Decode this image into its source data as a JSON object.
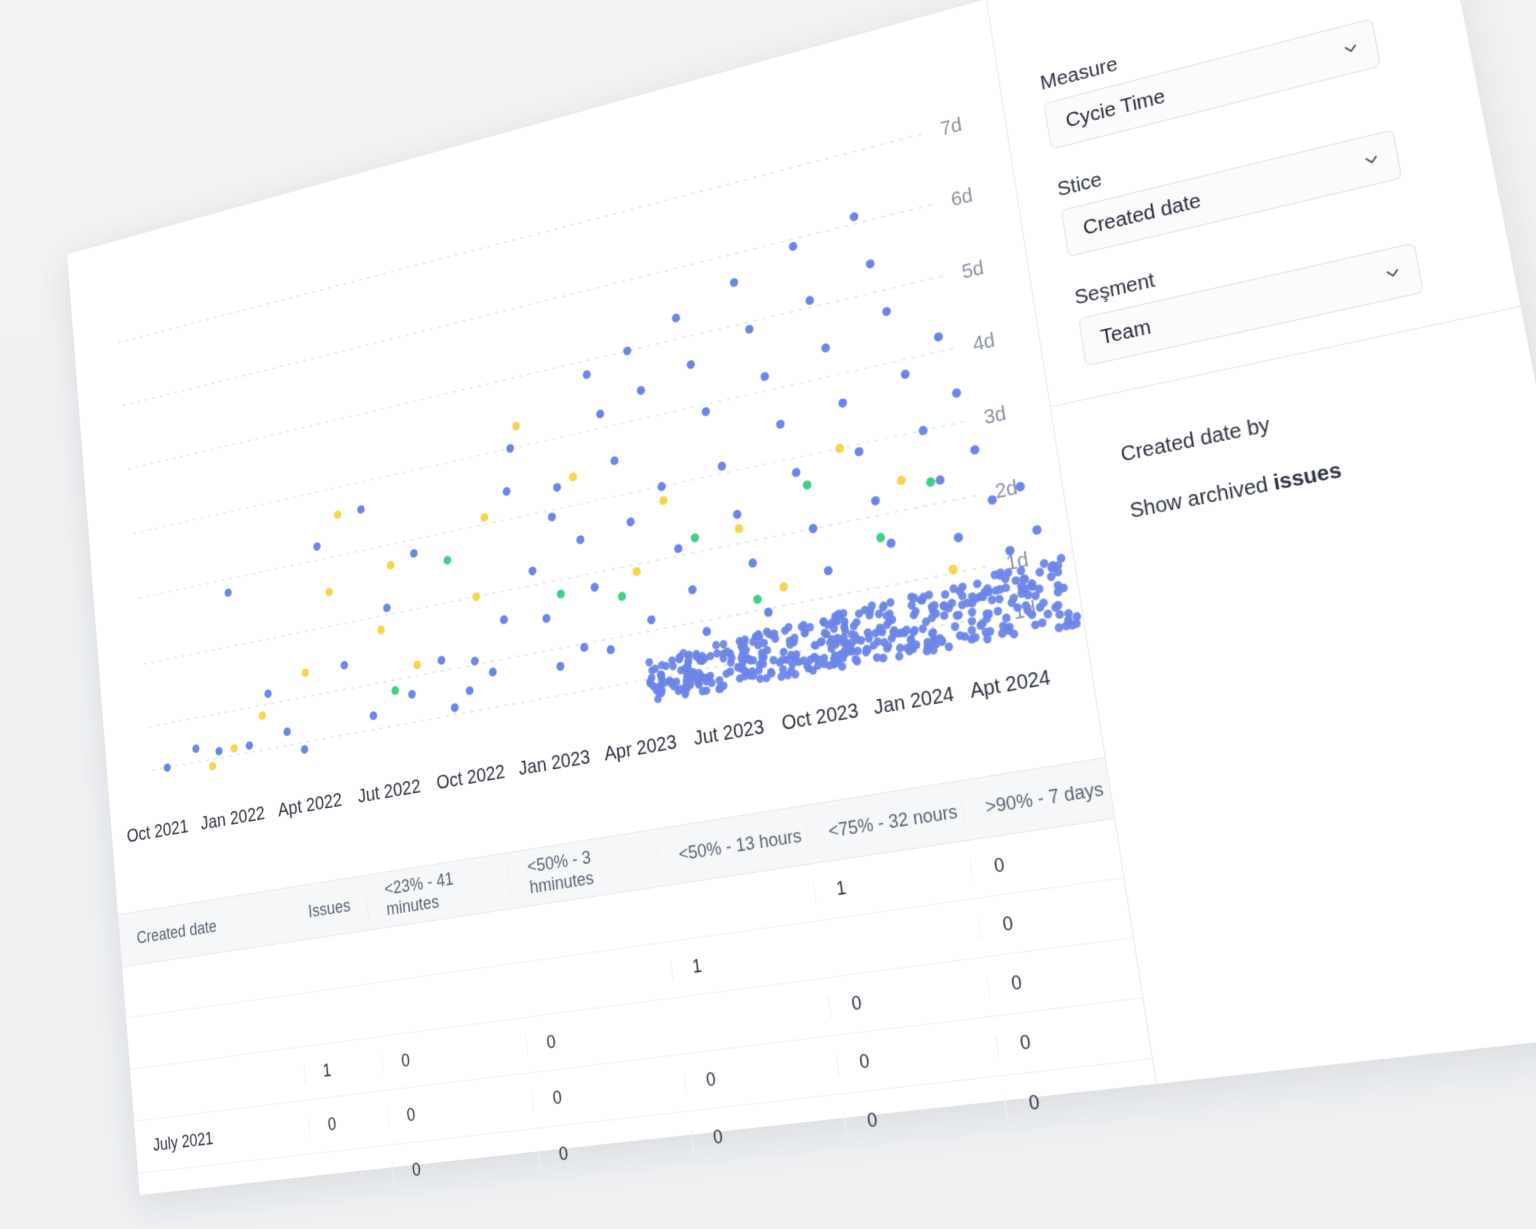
{
  "close_icon": "close-icon",
  "sidebar": {
    "measure": {
      "label": "Measure",
      "value": "Cycie Time"
    },
    "slice": {
      "label": "Stice",
      "value": "Created date"
    },
    "segment": {
      "label": "Seşment",
      "value": "Team"
    },
    "created_by": "Created date by",
    "show_archived_prefix": "Show archived",
    "show_archived_bold": "issues"
  },
  "chart_data": {
    "type": "scatter",
    "title": "",
    "xlabel": "",
    "ylabel": "",
    "x_ticks": [
      "Oct 2021",
      "Jan 2022",
      "Apt 2022",
      "Jut 2022",
      "Oct 2022",
      "Jan 2023",
      "Apr 2023",
      "Jut 2023",
      "Oct 2023",
      "Jan 2024",
      "Apt 2024"
    ],
    "y_ticks": [
      "1d",
      "1d",
      "2d",
      "3d",
      "4d",
      "5d",
      "6d",
      "7d"
    ],
    "ylim": [
      0,
      7
    ],
    "grid": true,
    "colors": {
      "primary": "#6b86e8",
      "secondary": "#f5d64a",
      "tertiary": "#3fd08a"
    },
    "series": [
      {
        "color": "#6b86e8",
        "points": [
          [
            0.2,
            0.4
          ],
          [
            0.6,
            0.6
          ],
          [
            0.9,
            0.5
          ],
          [
            1.2,
            2.8
          ],
          [
            1.3,
            0.5
          ],
          [
            1.6,
            1.2
          ],
          [
            1.8,
            0.6
          ],
          [
            2.0,
            0.3
          ],
          [
            2.4,
            3.2
          ],
          [
            2.6,
            1.4
          ],
          [
            2.9,
            0.6
          ],
          [
            3.0,
            3.6
          ],
          [
            3.2,
            2.1
          ],
          [
            3.4,
            0.8
          ],
          [
            3.6,
            2.8
          ],
          [
            3.8,
            1.2
          ],
          [
            3.9,
            0.5
          ],
          [
            4.1,
            0.7
          ],
          [
            4.2,
            1.1
          ],
          [
            4.4,
            0.9
          ],
          [
            4.6,
            1.6
          ],
          [
            4.8,
            3.4
          ],
          [
            4.9,
            4.0
          ],
          [
            5.0,
            2.2
          ],
          [
            5.1,
            1.5
          ],
          [
            5.2,
            0.8
          ],
          [
            5.3,
            2.9
          ],
          [
            5.4,
            3.3
          ],
          [
            5.5,
            1.0
          ],
          [
            5.6,
            2.5
          ],
          [
            5.7,
            1.8
          ],
          [
            5.8,
            0.9
          ],
          [
            5.9,
            4.8
          ],
          [
            6.0,
            4.2
          ],
          [
            6.1,
            3.5
          ],
          [
            6.2,
            2.6
          ],
          [
            6.3,
            1.2
          ],
          [
            6.4,
            5.0
          ],
          [
            6.5,
            4.4
          ],
          [
            6.6,
            3.0
          ],
          [
            6.7,
            2.1
          ],
          [
            6.8,
            1.5
          ],
          [
            6.9,
            0.9
          ],
          [
            7.0,
            5.3
          ],
          [
            7.1,
            4.6
          ],
          [
            7.2,
            3.9
          ],
          [
            7.3,
            3.1
          ],
          [
            7.4,
            2.4
          ],
          [
            7.5,
            1.7
          ],
          [
            7.6,
            1.0
          ],
          [
            7.7,
            5.6
          ],
          [
            7.8,
            4.9
          ],
          [
            7.9,
            4.2
          ],
          [
            8.0,
            3.5
          ],
          [
            8.1,
            2.8
          ],
          [
            8.2,
            2.0
          ],
          [
            8.3,
            1.4
          ],
          [
            8.4,
            5.9
          ],
          [
            8.5,
            5.1
          ],
          [
            8.6,
            4.4
          ],
          [
            8.7,
            3.6
          ],
          [
            8.8,
            2.9
          ],
          [
            8.9,
            2.2
          ],
          [
            9.0,
            1.6
          ],
          [
            9.1,
            6.1
          ],
          [
            9.2,
            5.4
          ],
          [
            9.3,
            4.7
          ],
          [
            9.4,
            3.8
          ],
          [
            9.5,
            3.0
          ],
          [
            9.6,
            2.3
          ],
          [
            9.7,
            1.5
          ],
          [
            9.8,
            4.2
          ],
          [
            9.9,
            3.4
          ],
          [
            10.0,
            2.6
          ],
          [
            10.1,
            1.9
          ],
          [
            10.2,
            1.2
          ],
          [
            10.3,
            0.8
          ],
          [
            10.4,
            2.0
          ],
          [
            10.5,
            1.4
          ],
          [
            10.6,
            0.9
          ]
        ]
      },
      {
        "color": "#f5d64a",
        "points": [
          [
            0.8,
            0.3
          ],
          [
            1.1,
            0.5
          ],
          [
            1.5,
            0.9
          ],
          [
            2.1,
            1.4
          ],
          [
            2.5,
            2.5
          ],
          [
            2.7,
            3.6
          ],
          [
            3.1,
            1.8
          ],
          [
            3.3,
            2.7
          ],
          [
            3.5,
            1.2
          ],
          [
            4.3,
            2.0
          ],
          [
            4.5,
            3.1
          ],
          [
            5.0,
            4.3
          ],
          [
            5.6,
            3.4
          ],
          [
            6.2,
            1.9
          ],
          [
            6.6,
            2.8
          ],
          [
            7.4,
            2.2
          ],
          [
            7.8,
            1.3
          ],
          [
            8.6,
            3.0
          ],
          [
            9.2,
            2.4
          ],
          [
            9.6,
            1.1
          ]
        ]
      },
      {
        "color": "#3fd08a",
        "points": [
          [
            3.2,
            0.9
          ],
          [
            4.0,
            2.6
          ],
          [
            5.3,
            1.8
          ],
          [
            6.0,
            1.6
          ],
          [
            6.9,
            2.2
          ],
          [
            7.5,
            1.2
          ],
          [
            8.2,
            2.6
          ],
          [
            8.9,
            1.7
          ],
          [
            9.5,
            2.3
          ]
        ]
      }
    ],
    "dense_band": {
      "from_x": 6.2,
      "to_x": 10.8,
      "y_min": 0.1,
      "y_max": 1.0,
      "color": "#6b86e8"
    }
  },
  "table": {
    "headers": [
      "Created date",
      "Issues",
      "<23% - 41 minutes",
      "<50% - 3 hminutes",
      "<50% - 13 hours",
      "<75% - 32 nours",
      ">90% - 7 days"
    ],
    "rows": [
      [
        "",
        "",
        "",
        "",
        "",
        "1",
        "0"
      ],
      [
        "",
        "",
        "",
        "",
        "1",
        "",
        "0"
      ],
      [
        "",
        "1",
        "0",
        "0",
        "",
        "0",
        "0"
      ],
      [
        "July 2021",
        "0",
        "0",
        "0",
        "0",
        "0",
        "0"
      ],
      [
        "",
        "",
        "0",
        "0",
        "0",
        "0",
        "0"
      ]
    ]
  }
}
